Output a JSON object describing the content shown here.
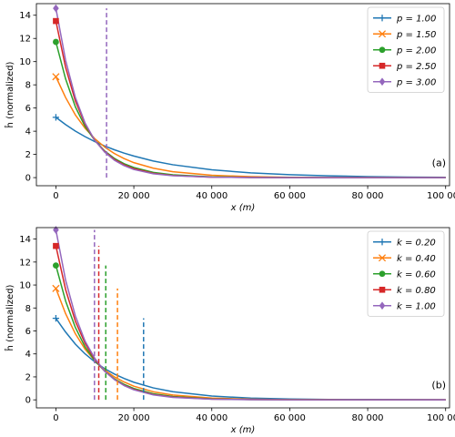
{
  "chart_data": [
    {
      "type": "line",
      "panel_label": "(a)",
      "xlabel": "x (m)",
      "ylabel": "ĥ (normalized)",
      "xlim": [
        -5000,
        101000
      ],
      "ylim": [
        -0.7,
        15
      ],
      "xticks": [
        0,
        20000,
        40000,
        60000,
        80000,
        100000
      ],
      "xtick_labels": [
        "0",
        "20 000",
        "40 000",
        "60 000",
        "80 000",
        "100 000"
      ],
      "yticks": [
        0,
        2,
        4,
        6,
        8,
        10,
        12,
        14
      ],
      "ytick_labels": [
        "0",
        "2",
        "4",
        "6",
        "8",
        "10",
        "12",
        "14"
      ],
      "legend_position": "top-right",
      "x": [
        0,
        2500,
        5000,
        7500,
        10000,
        12500,
        15000,
        17500,
        20000,
        25000,
        30000,
        40000,
        50000,
        60000,
        70000,
        80000,
        90000,
        100000
      ],
      "series": [
        {
          "name": "p = 1.00",
          "color": "#1f77b4",
          "marker": "plus",
          "values": [
            5.2,
            4.57,
            4.01,
            3.53,
            3.1,
            2.73,
            2.4,
            2.11,
            1.86,
            1.43,
            1.11,
            0.67,
            0.41,
            0.25,
            0.15,
            0.09,
            0.05,
            0.03
          ]
        },
        {
          "name": "p = 1.50",
          "color": "#ff7f0e",
          "marker": "x",
          "values": [
            8.7,
            6.9,
            5.4,
            4.25,
            3.35,
            2.64,
            2.08,
            1.64,
            1.29,
            0.81,
            0.51,
            0.2,
            0.08,
            0.03,
            0.01,
            0.01,
            0.0,
            0.0
          ]
        },
        {
          "name": "p = 2.00",
          "color": "#2ca02c",
          "marker": "circle",
          "values": [
            11.7,
            8.5,
            6.1,
            4.4,
            3.2,
            2.3,
            1.66,
            1.2,
            0.87,
            0.45,
            0.24,
            0.07,
            0.02,
            0.01,
            0.0,
            0.0,
            0.0,
            0.0
          ]
        },
        {
          "name": "p = 2.50",
          "color": "#d62728",
          "marker": "square",
          "values": [
            13.5,
            9.5,
            6.6,
            4.6,
            3.2,
            2.25,
            1.57,
            1.1,
            0.77,
            0.37,
            0.18,
            0.04,
            0.01,
            0.0,
            0.0,
            0.0,
            0.0,
            0.0
          ]
        },
        {
          "name": "p = 3.00",
          "color": "#9467bd",
          "marker": "diamond",
          "values": [
            14.6,
            10.1,
            6.9,
            4.7,
            3.2,
            2.2,
            1.5,
            1.03,
            0.7,
            0.33,
            0.16,
            0.04,
            0.01,
            0.0,
            0.0,
            0.0,
            0.0,
            0.0
          ]
        }
      ],
      "vlines": [
        {
          "x": 13000,
          "ymin": 0,
          "ymax": 14.6,
          "color": "#9467bd"
        }
      ]
    },
    {
      "type": "line",
      "panel_label": "(b)",
      "xlabel": "x (m)",
      "ylabel": "ĥ (normalized)",
      "xlim": [
        -5000,
        101000
      ],
      "ylim": [
        -0.7,
        15
      ],
      "xticks": [
        0,
        20000,
        40000,
        60000,
        80000,
        100000
      ],
      "xtick_labels": [
        "0",
        "20 000",
        "40 000",
        "60 000",
        "80 000",
        "100 000"
      ],
      "yticks": [
        0,
        2,
        4,
        6,
        8,
        10,
        12,
        14
      ],
      "ytick_labels": [
        "0",
        "2",
        "4",
        "6",
        "8",
        "10",
        "12",
        "14"
      ],
      "legend_position": "top-right",
      "x": [
        0,
        2500,
        5000,
        7500,
        10000,
        12500,
        15000,
        17500,
        20000,
        25000,
        30000,
        40000,
        50000,
        60000,
        70000,
        80000,
        90000,
        100000
      ],
      "series": [
        {
          "name": "k = 0.20",
          "color": "#1f77b4",
          "marker": "plus",
          "values": [
            7.1,
            5.9,
            4.85,
            4.0,
            3.3,
            2.72,
            2.25,
            1.86,
            1.53,
            1.04,
            0.71,
            0.33,
            0.15,
            0.07,
            0.03,
            0.02,
            0.01,
            0.0
          ]
        },
        {
          "name": "k = 0.40",
          "color": "#ff7f0e",
          "marker": "x",
          "values": [
            9.7,
            7.5,
            5.75,
            4.4,
            3.4,
            2.6,
            2.0,
            1.55,
            1.19,
            0.7,
            0.42,
            0.15,
            0.05,
            0.02,
            0.01,
            0.0,
            0.0,
            0.0
          ]
        },
        {
          "name": "k = 0.60",
          "color": "#2ca02c",
          "marker": "circle",
          "values": [
            11.7,
            8.6,
            6.3,
            4.6,
            3.4,
            2.5,
            1.83,
            1.35,
            0.99,
            0.53,
            0.29,
            0.08,
            0.02,
            0.01,
            0.0,
            0.0,
            0.0,
            0.0
          ]
        },
        {
          "name": "k = 0.80",
          "color": "#d62728",
          "marker": "square",
          "values": [
            13.4,
            9.6,
            6.85,
            4.9,
            3.5,
            2.5,
            1.78,
            1.27,
            0.91,
            0.46,
            0.24,
            0.06,
            0.02,
            0.0,
            0.0,
            0.0,
            0.0,
            0.0
          ]
        },
        {
          "name": "k = 1.00",
          "color": "#9467bd",
          "marker": "diamond",
          "values": [
            14.8,
            10.4,
            7.3,
            5.1,
            3.6,
            2.5,
            1.77,
            1.24,
            0.87,
            0.43,
            0.21,
            0.05,
            0.01,
            0.0,
            0.0,
            0.0,
            0.0,
            0.0
          ]
        }
      ],
      "vlines": [
        {
          "x": 22500,
          "ymin": 0,
          "ymax": 7.1,
          "color": "#1f77b4"
        },
        {
          "x": 15800,
          "ymin": 0,
          "ymax": 9.7,
          "color": "#ff7f0e"
        },
        {
          "x": 12800,
          "ymin": 0,
          "ymax": 11.7,
          "color": "#2ca02c"
        },
        {
          "x": 11000,
          "ymin": 0,
          "ymax": 13.4,
          "color": "#d62728"
        },
        {
          "x": 9900,
          "ymin": 0,
          "ymax": 14.8,
          "color": "#9467bd"
        }
      ]
    }
  ]
}
